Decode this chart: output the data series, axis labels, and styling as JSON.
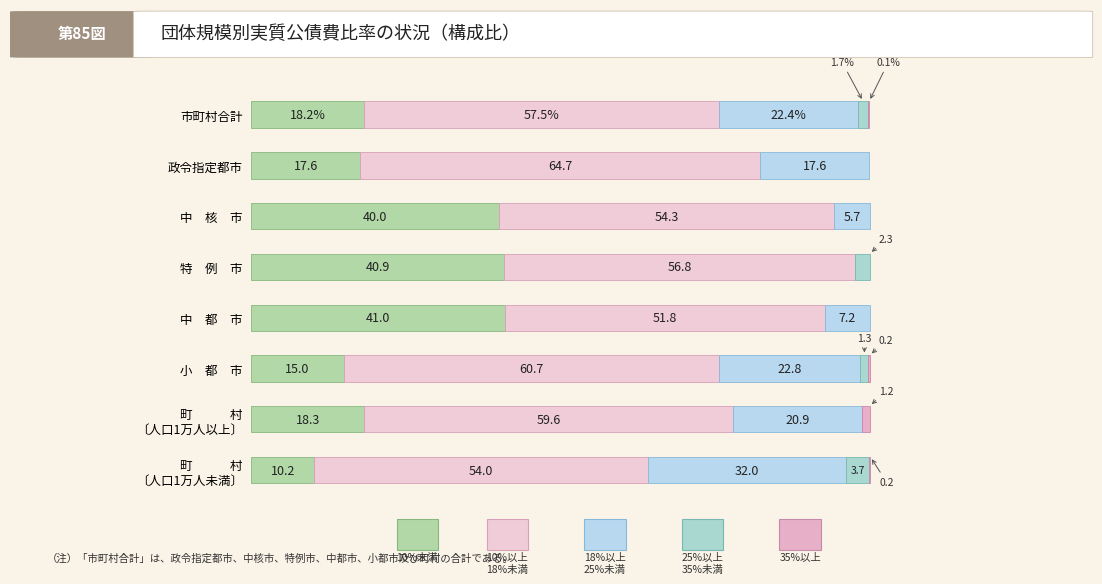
{
  "title_label": "第85図",
  "title_text": "団体規模別実質公債費比率の状況（構成比）",
  "categories": [
    "市町村合計",
    "政令指定都市",
    "中　核　市",
    "特　例　市",
    "中　都　市",
    "小　都　市",
    "町　　　村\n〔人口1万人以上〕",
    "町　　　村\n〔人口1万人未満〕"
  ],
  "segments": [
    [
      18.2,
      57.5,
      22.4,
      1.7,
      0.1
    ],
    [
      17.6,
      64.7,
      17.6,
      0.0,
      0.0
    ],
    [
      40.0,
      54.3,
      5.7,
      0.0,
      0.0
    ],
    [
      40.9,
      56.8,
      0.0,
      2.3,
      0.0
    ],
    [
      41.0,
      51.8,
      7.2,
      0.0,
      0.0
    ],
    [
      15.0,
      60.7,
      22.8,
      1.3,
      0.2
    ],
    [
      18.3,
      59.6,
      20.9,
      0.0,
      1.2
    ],
    [
      10.2,
      54.0,
      32.0,
      3.7,
      0.2
    ]
  ],
  "segment_labels": [
    [
      "18.2%",
      "57.5%",
      "22.4%",
      "",
      ""
    ],
    [
      "17.6",
      "64.7",
      "17.6",
      "",
      ""
    ],
    [
      "40.0",
      "54.3",
      "5.7",
      "",
      ""
    ],
    [
      "40.9",
      "56.8",
      "",
      "",
      ""
    ],
    [
      "41.0",
      "51.8",
      "7.2",
      "",
      ""
    ],
    [
      "15.0",
      "60.7",
      "22.8",
      "",
      ""
    ],
    [
      "18.3",
      "59.6",
      "20.9",
      "",
      ""
    ],
    [
      "10.2",
      "54.0",
      "32.0",
      "3.7",
      ""
    ]
  ],
  "colors": [
    "#b2d8a8",
    "#f0ccd8",
    "#b8d8f0",
    "#a8d8d0",
    "#e8b0c8"
  ],
  "edge_colors": [
    "#88b880",
    "#d8a0b8",
    "#88b8d8",
    "#78b8b0",
    "#c888a8"
  ],
  "legend_labels": [
    "10%未満",
    "10%以上\n18%未満",
    "18%以上\n25%未満",
    "25%以上\n35%未満",
    "35%以上"
  ],
  "note": "（注）「市町村合計」は、政令指定都市、中核市、特例市、中都市、小都市及び町村の合計である。",
  "bg_color": "#faf4e8",
  "title_bg": "#a09080",
  "title_border": "#c8b8a0"
}
